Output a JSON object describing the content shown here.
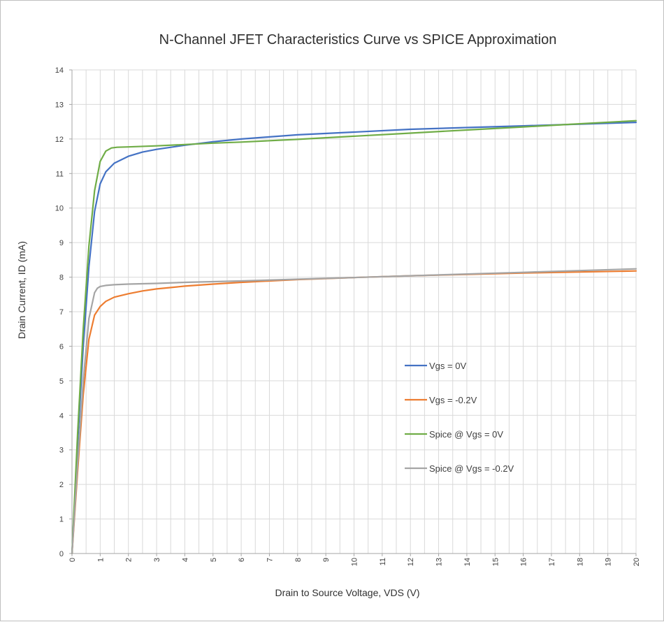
{
  "chart_data": {
    "type": "line",
    "title": "N-Channel JFET Characteristics Curve vs SPICE Approximation",
    "xlabel": "Drain to Source Voltage, VDS (V)",
    "ylabel": "Drain Current, ID (mA)",
    "xlim": [
      0,
      20
    ],
    "ylim": [
      0,
      14
    ],
    "x_ticks": [
      "0",
      "1",
      "2",
      "3",
      "4",
      "5",
      "6",
      "7",
      "8",
      "9",
      "10",
      "11",
      "12",
      "13",
      "14",
      "15",
      "16",
      "17",
      "18",
      "19",
      "20"
    ],
    "y_ticks": [
      "0",
      "1",
      "2",
      "3",
      "4",
      "5",
      "6",
      "7",
      "8",
      "9",
      "10",
      "11",
      "12",
      "13",
      "14"
    ],
    "grid": true,
    "legend_position": "center-right",
    "series": [
      {
        "name": "Vgs = 0V",
        "color": "#4472c4",
        "x": [
          0,
          0.2,
          0.4,
          0.6,
          0.8,
          1.0,
          1.2,
          1.5,
          2,
          2.5,
          3,
          4,
          5,
          6,
          7,
          8,
          10,
          12,
          14,
          16,
          18,
          20
        ],
        "y": [
          0,
          3.2,
          6.0,
          8.3,
          9.9,
          10.7,
          11.05,
          11.3,
          11.5,
          11.62,
          11.7,
          11.82,
          11.92,
          12.0,
          12.06,
          12.12,
          12.2,
          12.28,
          12.33,
          12.38,
          12.43,
          12.48
        ]
      },
      {
        "name": "Vgs = -0.2V",
        "color": "#ed7d31",
        "x": [
          0,
          0.2,
          0.4,
          0.6,
          0.8,
          1.0,
          1.2,
          1.5,
          2,
          2.5,
          3,
          4,
          5,
          6,
          7,
          8,
          10,
          12,
          14,
          16,
          18,
          20
        ],
        "y": [
          0,
          2.4,
          4.6,
          6.2,
          6.9,
          7.15,
          7.3,
          7.42,
          7.52,
          7.6,
          7.66,
          7.74,
          7.8,
          7.85,
          7.89,
          7.93,
          7.99,
          8.04,
          8.08,
          8.12,
          8.15,
          8.18
        ]
      },
      {
        "name": "Spice @ Vgs = 0V",
        "color": "#70ad47",
        "x": [
          0,
          0.2,
          0.4,
          0.6,
          0.8,
          1.0,
          1.2,
          1.4,
          1.6,
          2,
          3,
          4,
          5,
          6,
          8,
          10,
          12,
          14,
          16,
          18,
          20
        ],
        "y": [
          0,
          3.5,
          6.5,
          8.9,
          10.5,
          11.35,
          11.65,
          11.74,
          11.76,
          11.77,
          11.8,
          11.84,
          11.88,
          11.91,
          11.99,
          12.08,
          12.17,
          12.26,
          12.35,
          12.44,
          12.53
        ]
      },
      {
        "name": "Spice @ Vgs = -0.2V",
        "color": "#a5a5a5",
        "x": [
          0,
          0.2,
          0.4,
          0.6,
          0.8,
          0.9,
          1.0,
          1.2,
          1.5,
          2,
          3,
          4,
          5,
          6,
          8,
          10,
          12,
          14,
          16,
          18,
          20
        ],
        "y": [
          0,
          2.6,
          5.0,
          6.8,
          7.55,
          7.68,
          7.73,
          7.76,
          7.78,
          7.8,
          7.82,
          7.85,
          7.87,
          7.89,
          7.94,
          7.99,
          8.04,
          8.09,
          8.14,
          8.19,
          8.24
        ]
      }
    ]
  }
}
